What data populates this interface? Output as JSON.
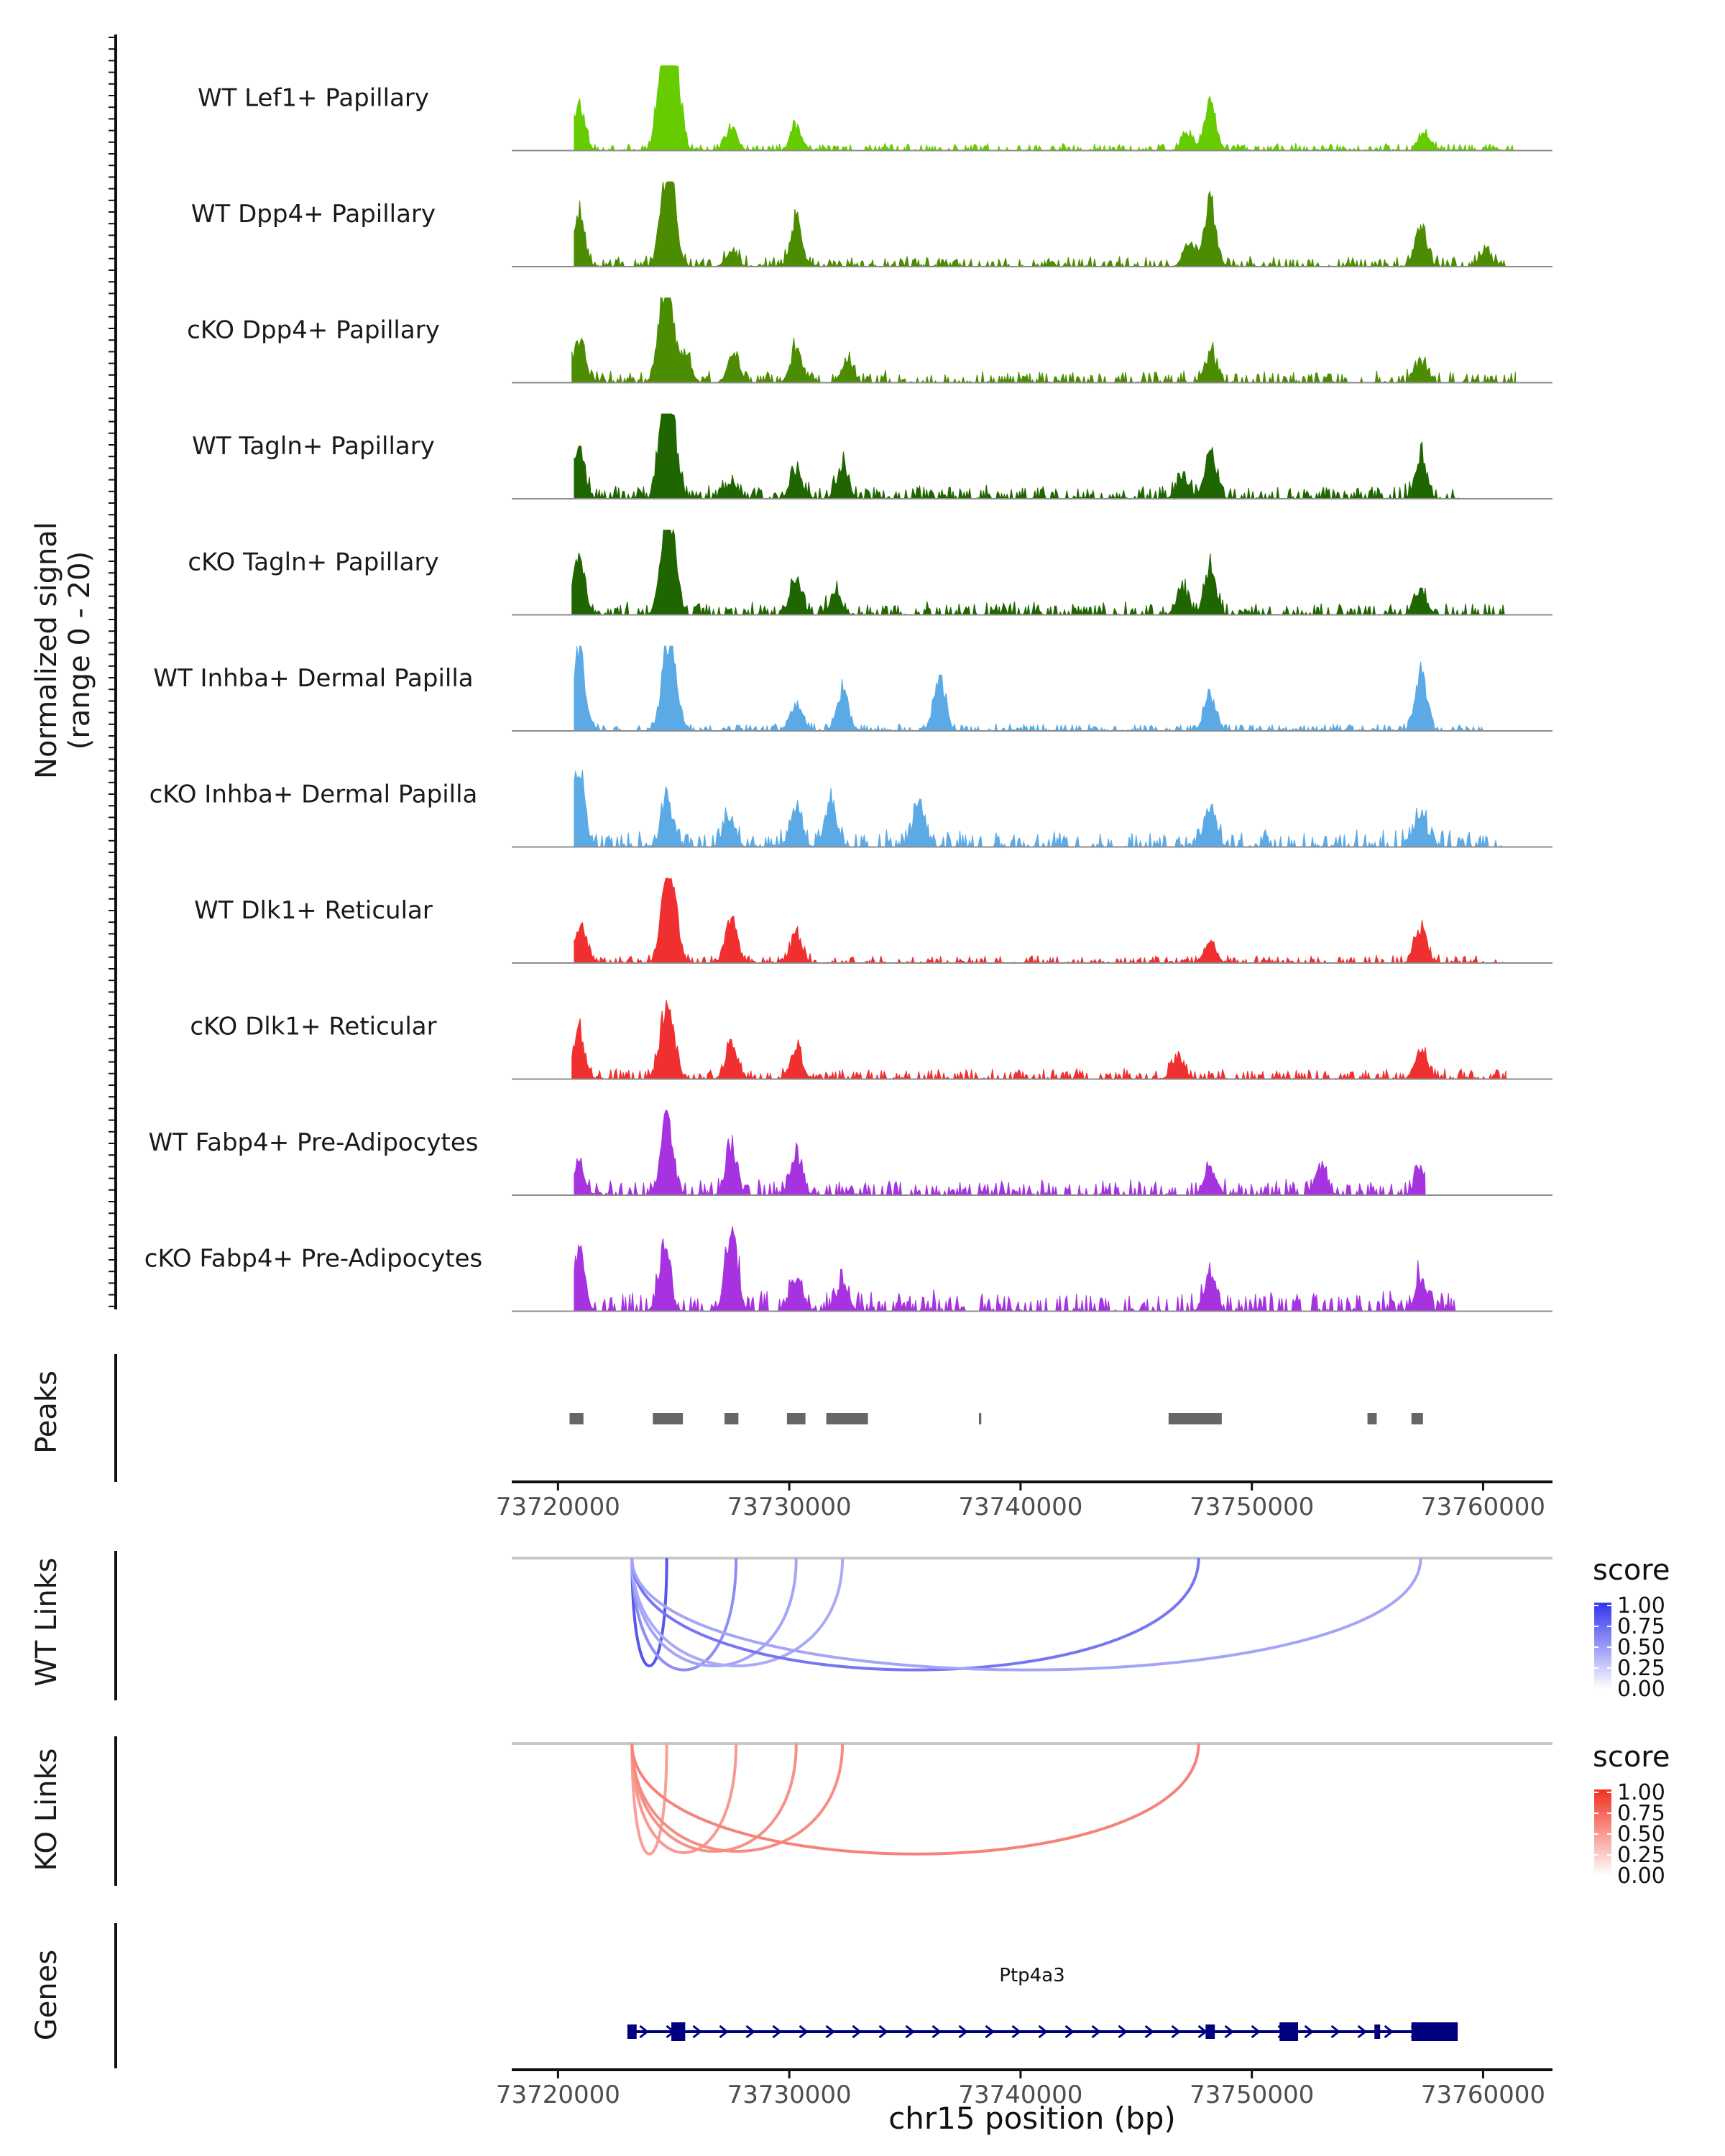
{
  "chart_data": {
    "type": "area",
    "chromosome": "chr15",
    "xlim": [
      73718000,
      73763000
    ],
    "tracks": [
      {
        "name": "WT Lef1+ Papillary",
        "color": "#66CC00",
        "peaks": [
          [
            73720900,
            0.55
          ],
          [
            73724500,
            0.8
          ],
          [
            73724800,
            1.0
          ],
          [
            73725100,
            0.75
          ],
          [
            73727500,
            0.25
          ],
          [
            73730300,
            0.3
          ],
          [
            73748200,
            0.6
          ],
          [
            73747200,
            0.2
          ],
          [
            73757500,
            0.2
          ]
        ],
        "noise": 0.08,
        "start": 73720700,
        "end": 73761300
      },
      {
        "name": "WT Dpp4+ Papillary",
        "color": "#4C8C00",
        "peaks": [
          [
            73720900,
            0.6
          ],
          [
            73724600,
            0.65
          ],
          [
            73724900,
            0.85
          ],
          [
            73727500,
            0.2
          ],
          [
            73730300,
            0.55
          ],
          [
            73748200,
            0.8
          ],
          [
            73747300,
            0.3
          ],
          [
            73757300,
            0.55
          ],
          [
            73760100,
            0.2
          ]
        ],
        "noise": 0.12,
        "start": 73720700,
        "end": 73761000
      },
      {
        "name": "cKO Dpp4+ Papillary",
        "color": "#4C8C00",
        "peaks": [
          [
            73720900,
            0.55
          ],
          [
            73724500,
            0.65
          ],
          [
            73724800,
            0.85
          ],
          [
            73725500,
            0.35
          ],
          [
            73727600,
            0.35
          ],
          [
            73730300,
            0.4
          ],
          [
            73732500,
            0.25
          ],
          [
            73748200,
            0.35
          ],
          [
            73757300,
            0.25
          ]
        ],
        "noise": 0.14,
        "start": 73720600,
        "end": 73761400
      },
      {
        "name": "WT Tagln+ Papillary",
        "color": "#1F6600",
        "peaks": [
          [
            73720900,
            0.65
          ],
          [
            73724600,
            1.0
          ],
          [
            73724900,
            0.9
          ],
          [
            73727500,
            0.2
          ],
          [
            73730300,
            0.35
          ],
          [
            73732300,
            0.4
          ],
          [
            73748200,
            0.6
          ],
          [
            73747000,
            0.3
          ],
          [
            73757300,
            0.5
          ]
        ],
        "noise": 0.16,
        "start": 73720700,
        "end": 73759000
      },
      {
        "name": "cKO Tagln+ Papillary",
        "color": "#1F6600",
        "peaks": [
          [
            73720900,
            0.75
          ],
          [
            73724600,
            0.7
          ],
          [
            73724900,
            0.85
          ],
          [
            73730300,
            0.45
          ],
          [
            73732000,
            0.25
          ],
          [
            73748200,
            0.55
          ],
          [
            73747000,
            0.3
          ],
          [
            73757300,
            0.3
          ]
        ],
        "noise": 0.15,
        "start": 73720600,
        "end": 73761000
      },
      {
        "name": "WT Inhba+ Dermal Papilla",
        "color": "#5BAAE6",
        "peaks": [
          [
            73720900,
            1.0
          ],
          [
            73724700,
            0.85
          ],
          [
            73725000,
            0.55
          ],
          [
            73730300,
            0.35
          ],
          [
            73732300,
            0.5
          ],
          [
            73736500,
            0.65
          ],
          [
            73748200,
            0.45
          ],
          [
            73757300,
            0.75
          ]
        ],
        "noise": 0.08,
        "start": 73720700,
        "end": 73760000
      },
      {
        "name": "cKO Inhba+ Dermal Papilla",
        "color": "#5BAAE6",
        "peaks": [
          [
            73720900,
            1.0
          ],
          [
            73724700,
            0.55
          ],
          [
            73727400,
            0.4
          ],
          [
            73730300,
            0.45
          ],
          [
            73731800,
            0.55
          ],
          [
            73735600,
            0.55
          ],
          [
            73748200,
            0.5
          ],
          [
            73757300,
            0.4
          ]
        ],
        "noise": 0.2,
        "start": 73720700,
        "end": 73760800
      },
      {
        "name": "WT Dlk1+ Reticular",
        "color": "#F03030",
        "peaks": [
          [
            73721000,
            0.45
          ],
          [
            73724700,
            1.0
          ],
          [
            73725000,
            0.5
          ],
          [
            73727500,
            0.55
          ],
          [
            73730300,
            0.35
          ],
          [
            73748200,
            0.25
          ],
          [
            73757300,
            0.45
          ]
        ],
        "noise": 0.09,
        "start": 73720700,
        "end": 73761000
      },
      {
        "name": "cKO Dlk1+ Reticular",
        "color": "#F03030",
        "peaks": [
          [
            73720900,
            0.6
          ],
          [
            73724600,
            0.6
          ],
          [
            73724900,
            0.45
          ],
          [
            73727500,
            0.45
          ],
          [
            73730300,
            0.4
          ],
          [
            73746800,
            0.3
          ],
          [
            73757300,
            0.4
          ]
        ],
        "noise": 0.12,
        "start": 73720600,
        "end": 73761000
      },
      {
        "name": "WT Fabp4+ Pre-Adipocytes",
        "color": "#A733E0",
        "peaks": [
          [
            73720900,
            0.4
          ],
          [
            73724700,
            1.0
          ],
          [
            73727500,
            0.55
          ],
          [
            73730300,
            0.45
          ],
          [
            73748200,
            0.35
          ],
          [
            73753000,
            0.35
          ],
          [
            73757300,
            0.35
          ]
        ],
        "noise": 0.18,
        "start": 73720700,
        "end": 73757500
      },
      {
        "name": "cKO Fabp4+ Pre-Adipocytes",
        "color": "#A733E0",
        "peaks": [
          [
            73720900,
            0.75
          ],
          [
            73724600,
            0.75
          ],
          [
            73727500,
            1.0
          ],
          [
            73730300,
            0.4
          ],
          [
            73732300,
            0.35
          ],
          [
            73748200,
            0.45
          ],
          [
            73757300,
            0.4
          ]
        ],
        "noise": 0.24,
        "start": 73720700,
        "end": 73759000
      }
    ],
    "peak_regions": [
      [
        73720500,
        73721100
      ],
      [
        73724100,
        73725400
      ],
      [
        73727200,
        73727800
      ],
      [
        73729900,
        73730700
      ],
      [
        73731600,
        73733400
      ],
      [
        73738200,
        73738300
      ],
      [
        73746400,
        73748700
      ],
      [
        73755000,
        73755400
      ],
      [
        73756900,
        73757400
      ]
    ],
    "links": {
      "WT": [
        {
          "start": 73723200,
          "end": 73724700,
          "score": 0.62,
          "depth": 0.8
        },
        {
          "start": 73723200,
          "end": 73727700,
          "score": 0.38,
          "depth": 0.83
        },
        {
          "start": 73723200,
          "end": 73730300,
          "score": 0.28,
          "depth": 0.8
        },
        {
          "start": 73723200,
          "end": 73732300,
          "score": 0.26,
          "depth": 0.8
        },
        {
          "start": 73723200,
          "end": 73747700,
          "score": 0.48,
          "depth": 0.83
        },
        {
          "start": 73723200,
          "end": 73757300,
          "score": 0.28,
          "depth": 0.83
        }
      ],
      "KO": [
        {
          "start": 73723200,
          "end": 73724700,
          "score": 0.3,
          "depth": 0.82
        },
        {
          "start": 73723200,
          "end": 73727700,
          "score": 0.32,
          "depth": 0.81
        },
        {
          "start": 73723200,
          "end": 73730300,
          "score": 0.36,
          "depth": 0.8
        },
        {
          "start": 73723200,
          "end": 73732300,
          "score": 0.38,
          "depth": 0.8
        },
        {
          "start": 73723200,
          "end": 73747700,
          "score": 0.42,
          "depth": 0.82
        }
      ]
    },
    "gene": {
      "name": "Ptp4a3",
      "start": 73723000,
      "end": 73758900,
      "strand": "+",
      "exons": [
        [
          73723000,
          73723400
        ],
        [
          73724900,
          73725500
        ],
        [
          73748000,
          73748400
        ],
        [
          73751200,
          73752000
        ],
        [
          73755300,
          73755500
        ],
        [
          73756900,
          73758900
        ]
      ]
    }
  },
  "labels": {
    "signal_ylabel_line1": "Normalized signal",
    "signal_ylabel_line2": "(range 0 - 20)",
    "peaks_label": "Peaks",
    "wt_links_label": "WT Links",
    "ko_links_label": "KO Links",
    "genes_label": "Genes",
    "xlabel": "chr15 position (bp)",
    "gene_name": "Ptp4a3"
  },
  "x_ticks": [
    {
      "value": 73720000,
      "label": "73720000"
    },
    {
      "value": 73730000,
      "label": "73730000"
    },
    {
      "value": 73740000,
      "label": "73740000"
    },
    {
      "value": 73750000,
      "label": "73750000"
    },
    {
      "value": 73760000,
      "label": "73760000"
    }
  ],
  "legends": {
    "wt": {
      "title": "score",
      "color": "#3333EE",
      "ticks": [
        "1.00",
        "0.75",
        "0.50",
        "0.25",
        "0.00"
      ]
    },
    "ko": {
      "title": "score",
      "color": "#F03020",
      "ticks": [
        "1.00",
        "0.75",
        "0.50",
        "0.25",
        "0.00"
      ]
    }
  }
}
